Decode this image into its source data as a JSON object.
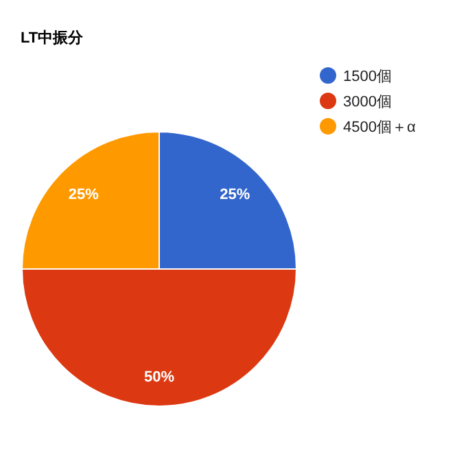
{
  "chart_data": {
    "type": "pie",
    "title": "LT中振分",
    "categories": [
      "1500個",
      "3000個",
      "4500個＋α"
    ],
    "values": [
      25,
      50,
      25
    ],
    "colors": [
      "#3366cc",
      "#dc3912",
      "#ff9900"
    ],
    "value_labels": [
      "25%",
      "50%",
      "25%"
    ],
    "legend": "top right"
  }
}
